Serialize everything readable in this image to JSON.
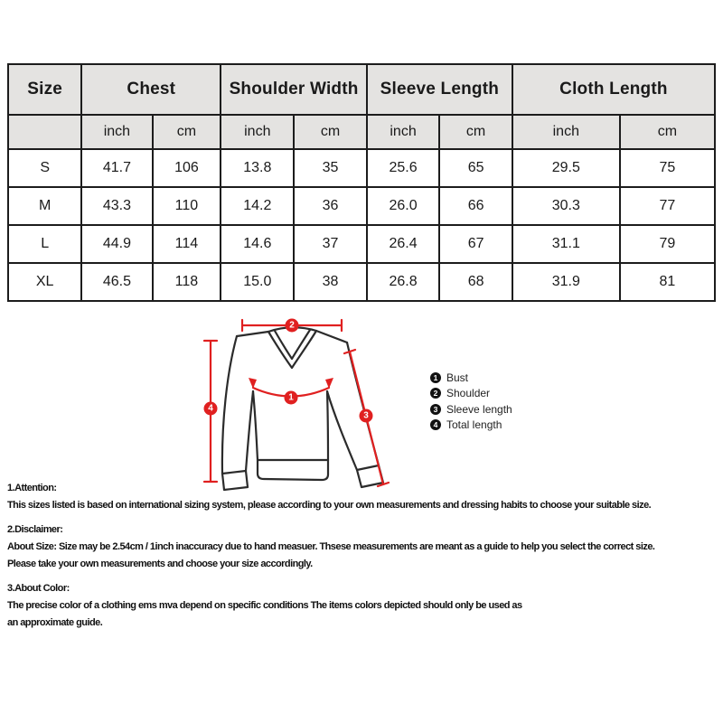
{
  "table": {
    "header": {
      "size": "Size",
      "groups": [
        "Chest",
        "Shoulder Width",
        "Sleeve Length",
        "Cloth Length"
      ],
      "units": [
        "inch",
        "cm",
        "inch",
        "cm",
        "inch",
        "cm",
        "inch",
        "cm"
      ]
    },
    "rows": [
      {
        "size": "S",
        "values": [
          "41.7",
          "106",
          "13.8",
          "35",
          "25.6",
          "65",
          "29.5",
          "75"
        ]
      },
      {
        "size": "M",
        "values": [
          "43.3",
          "110",
          "14.2",
          "36",
          "26.0",
          "66",
          "30.3",
          "77"
        ]
      },
      {
        "size": "L",
        "values": [
          "44.9",
          "114",
          "14.6",
          "37",
          "26.4",
          "67",
          "31.1",
          "79"
        ]
      },
      {
        "size": "XL",
        "values": [
          "46.5",
          "118",
          "15.0",
          "38",
          "26.8",
          "68",
          "31.9",
          "81"
        ]
      }
    ]
  },
  "diagram": {
    "markers": {
      "bust": "1",
      "shoulder": "2",
      "sleeve": "3",
      "total": "4"
    },
    "legend": [
      {
        "num": "1",
        "label": "Bust"
      },
      {
        "num": "2",
        "label": "Shoulder"
      },
      {
        "num": "3",
        "label": "Sleeve length"
      },
      {
        "num": "4",
        "label": "Total length"
      }
    ],
    "colors": {
      "measure_line": "#e02020",
      "outline": "#2b2b2b",
      "header_bg": "#e4e3e1"
    }
  },
  "notes": {
    "attention_title": "1.Attention:",
    "attention_body": "This sizes listed is based on international sizing system, please according to your own measurements and dressing habits to choose your suitable size.",
    "disclaimer_title": "2.Disclaimer:",
    "disclaimer_line1": "About Size: Size may be 2.54cm / 1inch inaccuracy due to hand measuer. Thsese measurements are meant as a guide to help you select the correct size.",
    "disclaimer_line2": "Please take your own measurements and choose your size accordingly.",
    "color_title": "3.About Color:",
    "color_line1": "The precise color of a clothing ems mva depend on specific conditions The items colors depicted should only be used as",
    "color_line2": "an approximate guide."
  }
}
